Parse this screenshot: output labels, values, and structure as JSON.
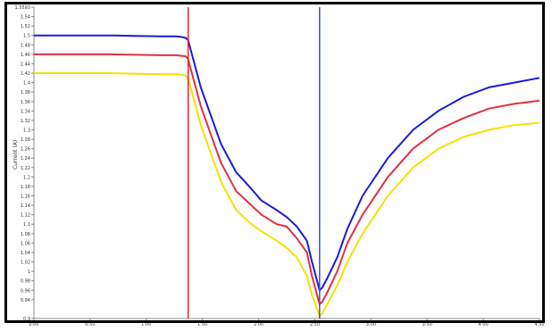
{
  "chart_data": {
    "type": "line",
    "ylabel": "Current (A)",
    "ylim": [
      0.9,
      1.56
    ],
    "yticks": [
      {
        "v": 1.56,
        "label": "1.5593"
      },
      {
        "v": 1.54,
        "label": "1.54"
      },
      {
        "v": 1.52,
        "label": "1.52"
      },
      {
        "v": 1.5,
        "label": "1.5"
      },
      {
        "v": 1.48,
        "label": "1.48"
      },
      {
        "v": 1.46,
        "label": "1.46"
      },
      {
        "v": 1.44,
        "label": "1.44"
      },
      {
        "v": 1.42,
        "label": "1.42"
      },
      {
        "v": 1.4,
        "label": "1.4"
      },
      {
        "v": 1.38,
        "label": "1.38"
      },
      {
        "v": 1.36,
        "label": "1.36"
      },
      {
        "v": 1.34,
        "label": "1.34"
      },
      {
        "v": 1.32,
        "label": "1.32"
      },
      {
        "v": 1.3,
        "label": "1.3"
      },
      {
        "v": 1.28,
        "label": "1.28"
      },
      {
        "v": 1.26,
        "label": "1.26"
      },
      {
        "v": 1.24,
        "label": "1.24"
      },
      {
        "v": 1.22,
        "label": "1.22"
      },
      {
        "v": 1.2,
        "label": "1.2"
      },
      {
        "v": 1.18,
        "label": "1.18"
      },
      {
        "v": 1.16,
        "label": "1.16"
      },
      {
        "v": 1.14,
        "label": "1.14"
      },
      {
        "v": 1.12,
        "label": "1.12"
      },
      {
        "v": 1.1,
        "label": "1.1"
      },
      {
        "v": 1.08,
        "label": "1.08"
      },
      {
        "v": 1.06,
        "label": "1.06"
      },
      {
        "v": 1.04,
        "label": "1.04"
      },
      {
        "v": 1.02,
        "label": "1.02"
      },
      {
        "v": 1.0,
        "label": "1"
      },
      {
        "v": 0.98,
        "label": "0.98"
      },
      {
        "v": 0.96,
        "label": "0.96"
      },
      {
        "v": 0.94,
        "label": "0.94"
      },
      {
        "v": 0.9,
        "label": "0.9"
      }
    ],
    "xticks": [
      "0:00",
      "0:50",
      "1:00",
      "1:50",
      "2:00",
      "2:50",
      "3:00",
      "3:50",
      "4:00",
      "4:50"
    ],
    "xlim": [
      0,
      100
    ],
    "markers": [
      {
        "name": "red-marker",
        "x": 30.5,
        "color": "#e8202a"
      },
      {
        "name": "blue-marker",
        "x": 56.5,
        "color": "#3a4fd8"
      }
    ],
    "series": [
      {
        "color": "#1a1adb",
        "x": [
          0,
          5,
          10,
          15,
          20,
          25,
          28,
          29,
          30,
          30.5,
          32,
          33,
          35,
          37,
          40,
          43,
          45,
          48,
          50,
          52,
          54,
          55,
          56.5,
          57,
          58,
          60,
          62,
          65,
          70,
          75,
          80,
          85,
          90,
          95,
          100
        ],
        "y": [
          1.5,
          1.5,
          1.5,
          1.5,
          1.499,
          1.498,
          1.498,
          1.497,
          1.495,
          1.49,
          1.43,
          1.39,
          1.33,
          1.27,
          1.21,
          1.175,
          1.15,
          1.13,
          1.115,
          1.095,
          1.065,
          1.02,
          0.96,
          0.965,
          0.985,
          1.03,
          1.09,
          1.16,
          1.24,
          1.3,
          1.34,
          1.37,
          1.39,
          1.4,
          1.41
        ]
      },
      {
        "color": "#e03040",
        "x": [
          0,
          5,
          10,
          15,
          20,
          25,
          28,
          29,
          30,
          30.5,
          32,
          33,
          35,
          37,
          40,
          43,
          45,
          48,
          50,
          52,
          54,
          55,
          56.5,
          57,
          58,
          60,
          62,
          65,
          70,
          75,
          80,
          85,
          90,
          95,
          100
        ],
        "y": [
          1.46,
          1.46,
          1.46,
          1.46,
          1.459,
          1.458,
          1.458,
          1.457,
          1.456,
          1.45,
          1.39,
          1.35,
          1.29,
          1.23,
          1.17,
          1.14,
          1.12,
          1.1,
          1.095,
          1.07,
          1.04,
          0.99,
          0.93,
          0.935,
          0.955,
          1.0,
          1.06,
          1.12,
          1.2,
          1.26,
          1.3,
          1.325,
          1.345,
          1.355,
          1.362
        ]
      },
      {
        "color": "#f4e100",
        "x": [
          0,
          5,
          10,
          15,
          20,
          25,
          28,
          29,
          30,
          30.5,
          32,
          33,
          35,
          37,
          40,
          43,
          45,
          48,
          50,
          52,
          54,
          55,
          56.5,
          57,
          58,
          60,
          62,
          65,
          70,
          75,
          80,
          85,
          90,
          95,
          100
        ],
        "y": [
          1.42,
          1.42,
          1.42,
          1.42,
          1.419,
          1.418,
          1.418,
          1.417,
          1.415,
          1.41,
          1.35,
          1.31,
          1.25,
          1.19,
          1.13,
          1.1,
          1.085,
          1.065,
          1.05,
          1.03,
          0.99,
          0.95,
          0.905,
          0.91,
          0.93,
          0.97,
          1.02,
          1.08,
          1.16,
          1.22,
          1.26,
          1.285,
          1.3,
          1.31,
          1.315
        ]
      }
    ]
  }
}
